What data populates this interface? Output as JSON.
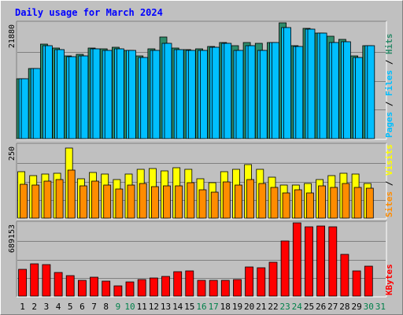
{
  "chart_data": {
    "type": "bar",
    "title": "Daily usage for March 2024",
    "categories": [
      "1",
      "2",
      "3",
      "4",
      "5",
      "6",
      "7",
      "8",
      "9",
      "10",
      "11",
      "12",
      "13",
      "14",
      "15",
      "16",
      "17",
      "18",
      "19",
      "20",
      "21",
      "22",
      "23",
      "24",
      "25",
      "26",
      "27",
      "28",
      "29",
      "30",
      "31"
    ],
    "weekend_days": [
      "9",
      "10",
      "16",
      "17",
      "23",
      "24",
      "30",
      "31"
    ],
    "panels": [
      {
        "id": "hits",
        "max_label": "21880",
        "ymax": 21880,
        "legend": [
          "Pages",
          "Files",
          "Hits"
        ],
        "series": [
          {
            "name": "Hits",
            "color": "#2e8b6a",
            "values": [
              11300,
              13300,
              17900,
              17100,
              15700,
              15900,
              17100,
              16900,
              17200,
              16700,
              15700,
              16900,
              19200,
              17100,
              16800,
              16900,
              17400,
              18200,
              17600,
              18200,
              18000,
              18200,
              21880,
              17500,
              20800,
              20000,
              19300,
              18700,
              15600,
              17500,
              0
            ]
          },
          {
            "name": "Files",
            "color": "#00bfff",
            "values": [
              11300,
              13200,
              17600,
              16800,
              15500,
              15700,
              16900,
              16700,
              16900,
              16600,
              15400,
              16700,
              18000,
              16800,
              16700,
              16600,
              17300,
              18000,
              16600,
              17600,
              16600,
              18100,
              21000,
              17400,
              20700,
              19900,
              18100,
              18300,
              15400,
              17500,
              0
            ]
          },
          {
            "name": "Pages",
            "color": "#00bfff",
            "values": [
              11300,
              13200,
              17600,
              16800,
              15500,
              15700,
              16900,
              16700,
              16900,
              16600,
              15400,
              16700,
              18000,
              16800,
              16700,
              16600,
              17300,
              18000,
              16600,
              17600,
              16600,
              18100,
              21000,
              17400,
              20700,
              19900,
              18100,
              18300,
              15400,
              17500,
              0
            ]
          }
        ]
      },
      {
        "id": "visits",
        "max_label": "250",
        "ymax": 250,
        "legend": [
          "Sites",
          "Visits"
        ],
        "series": [
          {
            "name": "Visits",
            "color": "#ffff00",
            "values": [
              158,
              146,
              151,
              152,
              240,
              135,
              157,
              150,
              131,
              150,
              166,
              170,
              160,
              172,
              168,
              134,
              122,
              159,
              166,
              183,
              166,
              139,
              112,
              112,
              117,
              131,
              146,
              154,
              150,
              117,
              0
            ]
          },
          {
            "name": "Sites",
            "color": "#ff8c00",
            "values": [
              115,
              113,
              125,
              131,
              164,
              109,
              127,
              113,
              99,
              114,
              119,
              108,
              110,
              111,
              121,
              96,
              88,
              123,
              114,
              133,
              117,
              105,
              85,
              96,
              87,
              111,
              106,
              118,
              106,
              101,
              0
            ]
          }
        ]
      },
      {
        "id": "kbytes",
        "max_label": "689153",
        "ymax": 689153,
        "legend": [
          "KBytes"
        ],
        "series": [
          {
            "name": "KBytes",
            "color": "#ff0000",
            "values": [
              250000,
              307000,
              293000,
              220000,
              193000,
              147000,
              178000,
              140000,
              96000,
              133000,
              158000,
              168000,
              184000,
              233000,
              237000,
              147000,
              151000,
              150000,
              158000,
              273000,
              264000,
              321000,
              522000,
              689153,
              650000,
              661000,
              653000,
              395000,
              236000,
              278000,
              0
            ]
          }
        ]
      }
    ]
  }
}
